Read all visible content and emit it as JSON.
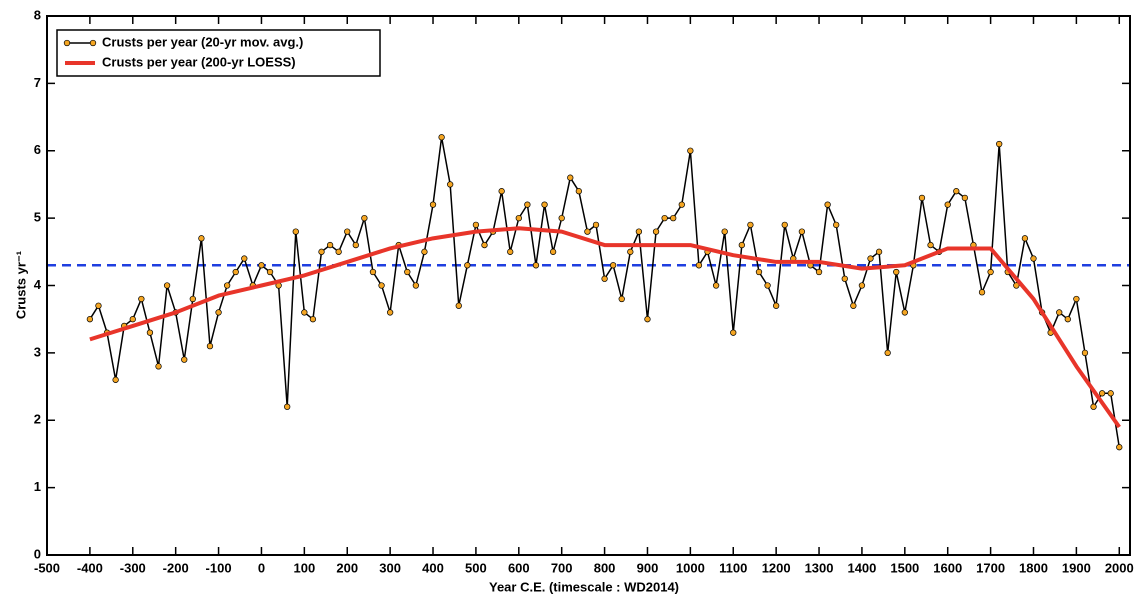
{
  "chart_data": {
    "type": "line",
    "xlabel": "Year C.E. (timescale : WD2014)",
    "ylabel": "Crusts yr⁻¹",
    "xlim": [
      -500,
      2025
    ],
    "ylim": [
      0,
      8
    ],
    "xticks": [
      -500,
      -400,
      -300,
      -200,
      -100,
      0,
      100,
      200,
      300,
      400,
      500,
      600,
      700,
      800,
      900,
      1000,
      1100,
      1200,
      1300,
      1400,
      1500,
      1600,
      1700,
      1800,
      1900,
      2000
    ],
    "yticks": [
      0,
      1,
      2,
      3,
      4,
      5,
      6,
      7,
      8
    ],
    "hline": {
      "value": 4.3,
      "color": "#1f3fe0"
    },
    "legend": "upper left",
    "series": [
      {
        "name": "Crusts per year (20-yr mov. avg.)",
        "color": "#000000",
        "marker_color": "#f5a623",
        "marker": true,
        "x": [
          -400,
          -380,
          -360,
          -340,
          -320,
          -300,
          -280,
          -260,
          -240,
          -220,
          -200,
          -180,
          -160,
          -140,
          -120,
          -100,
          -80,
          -60,
          -40,
          -20,
          0,
          20,
          40,
          60,
          80,
          100,
          120,
          140,
          160,
          180,
          200,
          220,
          240,
          260,
          280,
          300,
          320,
          340,
          360,
          380,
          400,
          420,
          440,
          460,
          480,
          500,
          520,
          540,
          560,
          580,
          600,
          620,
          640,
          660,
          680,
          700,
          720,
          740,
          760,
          780,
          800,
          820,
          840,
          860,
          880,
          900,
          920,
          940,
          960,
          980,
          1000,
          1020,
          1040,
          1060,
          1080,
          1100,
          1120,
          1140,
          1160,
          1180,
          1200,
          1220,
          1240,
          1260,
          1280,
          1300,
          1320,
          1340,
          1360,
          1380,
          1400,
          1420,
          1440,
          1460,
          1480,
          1500,
          1520,
          1540,
          1560,
          1580,
          1600,
          1620,
          1640,
          1660,
          1680,
          1700,
          1720,
          1740,
          1760,
          1780,
          1800,
          1820,
          1840,
          1860,
          1880,
          1900,
          1920,
          1940,
          1960,
          1980,
          2000
        ],
        "values": [
          3.5,
          3.7,
          3.3,
          2.6,
          3.4,
          3.5,
          3.8,
          3.3,
          2.8,
          4.0,
          3.6,
          2.9,
          3.8,
          4.7,
          3.1,
          3.6,
          4.0,
          4.2,
          4.4,
          4.0,
          4.3,
          4.2,
          4.0,
          2.2,
          4.8,
          3.6,
          3.5,
          4.5,
          4.6,
          4.5,
          4.8,
          4.6,
          5.0,
          4.2,
          4.0,
          3.6,
          4.6,
          4.2,
          4.0,
          4.5,
          5.2,
          6.2,
          5.5,
          3.7,
          4.3,
          4.9,
          4.6,
          4.8,
          5.4,
          4.5,
          5.0,
          5.2,
          4.3,
          5.2,
          4.5,
          5.0,
          5.6,
          5.4,
          4.8,
          4.9,
          4.1,
          4.3,
          3.8,
          4.5,
          4.8,
          3.5,
          4.8,
          5.0,
          5.0,
          5.2,
          6.0,
          4.3,
          4.5,
          4.0,
          4.8,
          3.3,
          4.6,
          4.9,
          4.2,
          4.0,
          3.7,
          4.9,
          4.4,
          4.8,
          4.3,
          4.2,
          5.2,
          4.9,
          4.1,
          3.7,
          4.0,
          4.4,
          4.5,
          3.0,
          4.2,
          3.6,
          4.3,
          5.3,
          4.6,
          4.5,
          5.2,
          5.4,
          5.3,
          4.6,
          3.9,
          4.2,
          6.1,
          4.2,
          4.0,
          4.7,
          4.4,
          3.6,
          3.3,
          3.6,
          3.5,
          3.8,
          3.0,
          2.2,
          2.4,
          2.4,
          1.6
        ]
      },
      {
        "name": "Crusts per year (200-yr LOESS)",
        "color": "#e8352a",
        "marker": false,
        "x": [
          -400,
          -300,
          -200,
          -100,
          0,
          100,
          200,
          300,
          400,
          500,
          600,
          700,
          800,
          900,
          1000,
          1100,
          1200,
          1300,
          1400,
          1500,
          1600,
          1700,
          1800,
          1900,
          2000
        ],
        "values": [
          3.2,
          3.4,
          3.6,
          3.85,
          4.0,
          4.15,
          4.35,
          4.55,
          4.7,
          4.8,
          4.85,
          4.8,
          4.6,
          4.6,
          4.6,
          4.45,
          4.35,
          4.35,
          4.25,
          4.3,
          4.55,
          4.55,
          3.8,
          2.8,
          1.9
        ]
      }
    ]
  }
}
